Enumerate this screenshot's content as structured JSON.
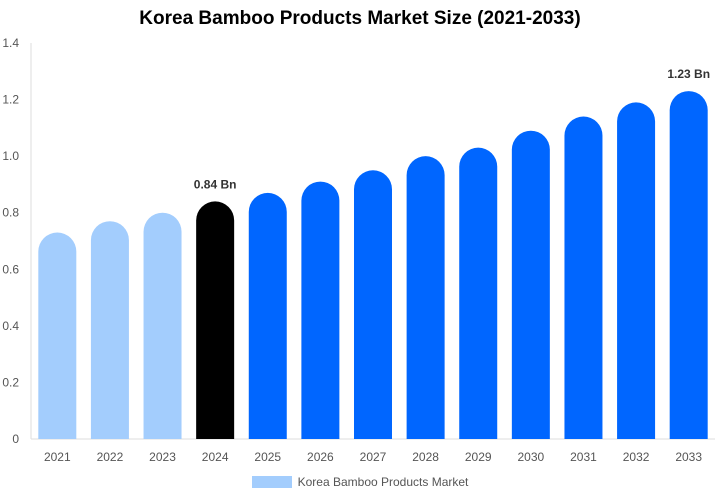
{
  "chart_data": {
    "type": "bar",
    "title": "Korea Bamboo Products Market Size (2021-2033)",
    "categories": [
      "2021",
      "2022",
      "2023",
      "2024",
      "2025",
      "2026",
      "2027",
      "2028",
      "2029",
      "2030",
      "2031",
      "2032",
      "2033"
    ],
    "series": [
      {
        "name": "Korea Bamboo Products Market",
        "values": [
          0.73,
          0.77,
          0.8,
          0.84,
          0.87,
          0.91,
          0.95,
          1.0,
          1.03,
          1.09,
          1.14,
          1.19,
          1.23
        ]
      }
    ],
    "ylim": [
      0,
      1.4
    ],
    "yticks": [
      "0",
      "0.2",
      "0.4",
      "0.6",
      "0.8",
      "1.0",
      "1.2",
      "1.4"
    ],
    "data_labels": {
      "3": "0.84 Bn",
      "12": "1.23 Bn"
    },
    "colors": {
      "historical": "#a3cdfd",
      "base_year": "#000000",
      "forecast": "#0066ff",
      "legend": "#a3cdfd"
    },
    "grid": false,
    "legend_position": "bottom"
  }
}
